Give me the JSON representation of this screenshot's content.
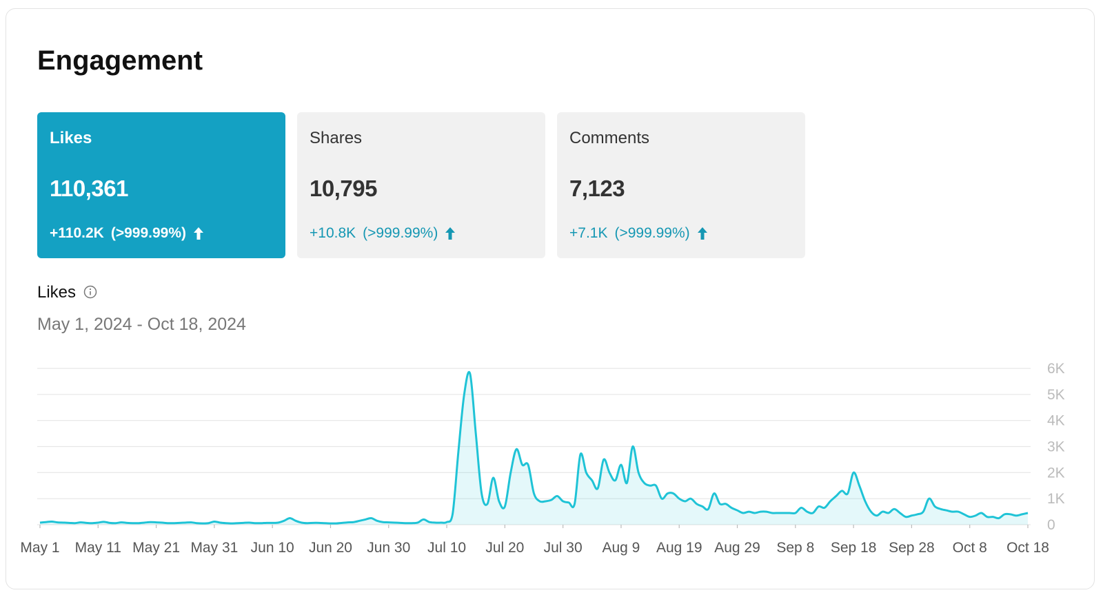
{
  "header": {
    "title": "Engagement"
  },
  "cards": [
    {
      "label": "Likes",
      "value": "110,361",
      "change": "+110.2K",
      "percent": "(>999.99%)",
      "active": true
    },
    {
      "label": "Shares",
      "value": "10,795",
      "change": "+10.8K",
      "percent": "(>999.99%)",
      "active": false
    },
    {
      "label": "Comments",
      "value": "7,123",
      "change": "+7.1K",
      "percent": "(>999.99%)",
      "active": false
    }
  ],
  "chart_data": {
    "type": "area",
    "title": "Likes",
    "subtitle": "May 1, 2024 - Oct 18, 2024",
    "color": "#1fc3d6",
    "x": [
      0,
      1,
      2,
      3,
      4,
      5,
      6,
      7,
      8,
      9,
      10,
      11,
      12,
      13,
      14,
      15,
      16,
      17,
      18,
      19,
      20,
      21,
      22,
      23,
      24,
      25,
      26,
      27,
      28,
      29,
      30,
      31,
      32,
      33,
      34,
      35,
      36,
      37,
      38,
      39,
      40,
      41,
      42,
      43,
      44,
      45,
      46,
      47,
      48,
      49,
      50,
      51,
      52,
      53,
      54,
      55,
      56,
      57,
      58,
      59,
      60,
      61,
      62,
      63,
      64,
      65,
      66,
      67,
      68,
      69,
      70,
      71,
      72,
      73,
      74,
      75,
      76,
      77,
      78,
      79,
      80,
      81,
      82,
      83,
      84,
      85,
      86,
      87,
      88,
      89,
      90,
      91,
      92,
      93,
      94,
      95,
      96,
      97,
      98,
      99,
      100,
      101,
      102,
      103,
      104,
      105,
      106,
      107,
      108,
      109,
      110,
      111,
      112,
      113,
      114,
      115,
      116,
      117,
      118,
      119,
      120,
      121,
      122,
      123,
      124,
      125,
      126,
      127,
      128,
      129,
      130,
      131,
      132,
      133,
      134,
      135,
      136,
      137,
      138,
      139,
      140,
      141,
      142,
      143,
      144,
      145,
      146,
      147,
      148,
      149,
      150,
      151,
      152,
      153,
      154,
      155,
      156,
      157,
      158,
      159,
      160,
      161,
      162,
      163,
      164,
      165,
      166,
      167,
      168,
      169,
      170
    ],
    "values": [
      80,
      100,
      120,
      90,
      80,
      70,
      60,
      90,
      70,
      60,
      80,
      110,
      70,
      60,
      90,
      70,
      60,
      60,
      80,
      100,
      90,
      80,
      60,
      60,
      70,
      80,
      90,
      60,
      50,
      60,
      120,
      80,
      60,
      50,
      60,
      70,
      80,
      60,
      60,
      70,
      70,
      80,
      150,
      250,
      150,
      80,
      60,
      70,
      70,
      60,
      50,
      50,
      70,
      90,
      100,
      150,
      200,
      250,
      150,
      100,
      90,
      80,
      70,
      60,
      60,
      80,
      200,
      100,
      80,
      80,
      100,
      400,
      2800,
      5000,
      5800,
      3500,
      1200,
      800,
      1800,
      900,
      700,
      2000,
      2900,
      2300,
      2300,
      1200,
      900,
      900,
      950,
      1100,
      900,
      850,
      800,
      2700,
      2000,
      1700,
      1400,
      2500,
      2000,
      1700,
      2300,
      1600,
      3000,
      2000,
      1600,
      1500,
      1500,
      1000,
      1200,
      1200,
      1000,
      900,
      1000,
      800,
      700,
      600,
      1200,
      800,
      800,
      650,
      550,
      450,
      500,
      450,
      500,
      500,
      450,
      450,
      450,
      450,
      450,
      650,
      500,
      450,
      700,
      650,
      900,
      1100,
      1300,
      1200,
      2000,
      1500,
      900,
      500,
      350,
      500,
      450,
      600,
      450,
      300,
      350,
      400,
      500,
      1000,
      700,
      600,
      550,
      500,
      500,
      400,
      300,
      350,
      450,
      300,
      300,
      250,
      400,
      400,
      350,
      400,
      450
    ],
    "xlim": [
      0,
      170
    ],
    "xticks": [
      {
        "value": 0,
        "label": "May 1"
      },
      {
        "value": 10,
        "label": "May 11"
      },
      {
        "value": 20,
        "label": "May 21"
      },
      {
        "value": 30,
        "label": "May 31"
      },
      {
        "value": 40,
        "label": "Jun 10"
      },
      {
        "value": 50,
        "label": "Jun 20"
      },
      {
        "value": 60,
        "label": "Jun 30"
      },
      {
        "value": 70,
        "label": "Jul 10"
      },
      {
        "value": 80,
        "label": "Jul 20"
      },
      {
        "value": 90,
        "label": "Jul 30"
      },
      {
        "value": 100,
        "label": "Aug 9"
      },
      {
        "value": 110,
        "label": "Aug 19"
      },
      {
        "value": 120,
        "label": "Aug 29"
      },
      {
        "value": 130,
        "label": "Sep 8"
      },
      {
        "value": 140,
        "label": "Sep 18"
      },
      {
        "value": 150,
        "label": "Sep 28"
      },
      {
        "value": 160,
        "label": "Oct 8"
      },
      {
        "value": 170,
        "label": "Oct 18"
      }
    ],
    "ylim": [
      0,
      6000
    ],
    "yticks": [
      0,
      {
        "value": 1000,
        "label": "1K"
      },
      {
        "value": 2000,
        "label": "2K"
      },
      {
        "value": 3000,
        "label": "3K"
      },
      {
        "value": 4000,
        "label": "4K"
      },
      {
        "value": 5000,
        "label": "5K"
      },
      {
        "value": 6000,
        "label": "6K"
      }
    ],
    "grid": true
  }
}
